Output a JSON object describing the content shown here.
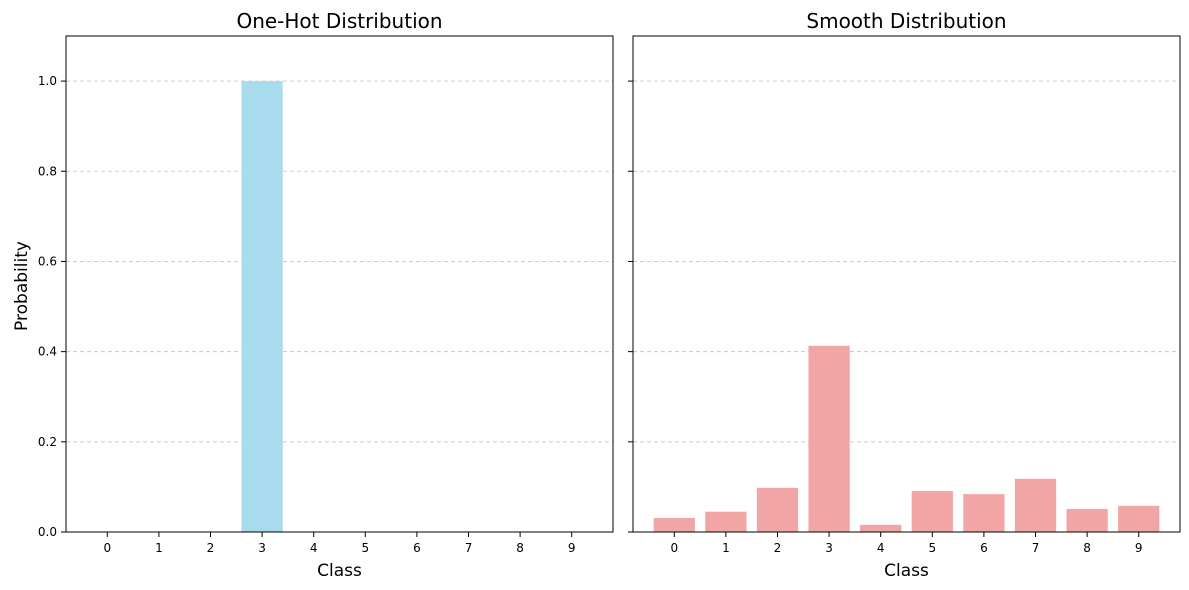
{
  "chart_data": [
    {
      "type": "bar",
      "title": "One-Hot Distribution",
      "xlabel": "Class",
      "ylabel": "Probability",
      "categories": [
        "0",
        "1",
        "2",
        "3",
        "4",
        "5",
        "6",
        "7",
        "8",
        "9"
      ],
      "values": [
        0,
        0,
        0,
        1.0,
        0,
        0,
        0,
        0,
        0,
        0
      ],
      "ylim": [
        0,
        1.1
      ],
      "yticks": [
        "0.0",
        "0.2",
        "0.4",
        "0.6",
        "0.8",
        "1.0"
      ],
      "grid": "y-dashed",
      "bar_color": "#a8dbee"
    },
    {
      "type": "bar",
      "title": "Smooth Distribution",
      "xlabel": "Class",
      "ylabel": "",
      "categories": [
        "0",
        "1",
        "2",
        "3",
        "4",
        "5",
        "6",
        "7",
        "8",
        "9"
      ],
      "values": [
        0.031,
        0.045,
        0.098,
        0.413,
        0.016,
        0.091,
        0.084,
        0.118,
        0.051,
        0.058
      ],
      "ylim": [
        0,
        1.1
      ],
      "yticks": [
        "0.0",
        "0.2",
        "0.4",
        "0.6",
        "0.8",
        "1.0"
      ],
      "grid": "y-dashed",
      "bar_color": "#f2a5a5"
    }
  ]
}
